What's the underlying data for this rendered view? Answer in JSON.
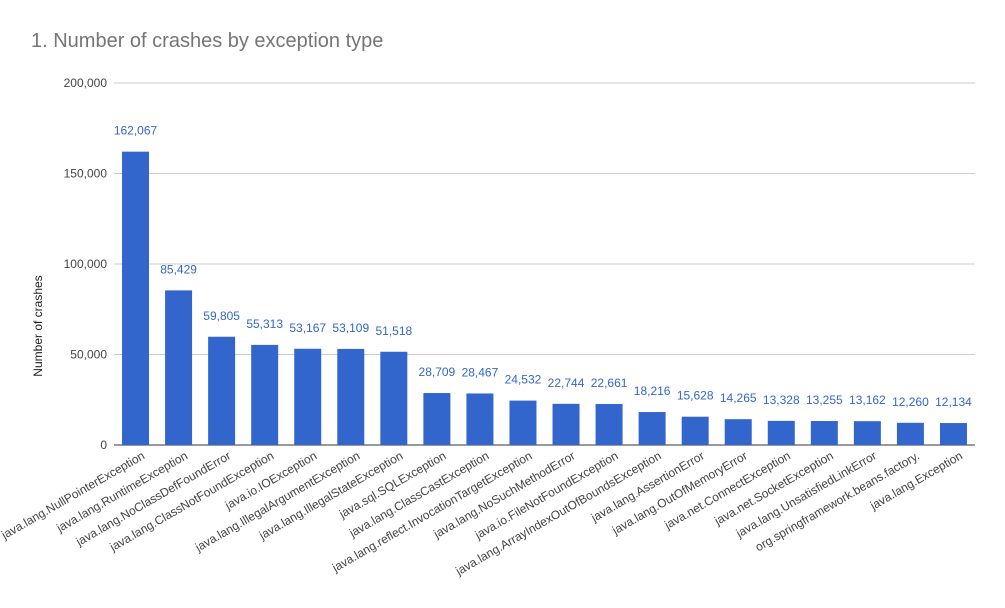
{
  "chart_data": {
    "type": "bar",
    "title": "1. Number of crashes by exception type",
    "xlabel": "",
    "ylabel": "Number of crashes",
    "ylim": [
      0,
      200000
    ],
    "yticks": [
      "0",
      "50,000",
      "100,000",
      "150,000",
      "200,000"
    ],
    "ytick_values": [
      0,
      50000,
      100000,
      150000,
      200000
    ],
    "grid": true,
    "bar_color": "#3366cc",
    "label_color": "#3366cc",
    "categories": [
      "java.lang.NullPointerException",
      "java.lang.RuntimeException",
      "java.lang.NoClassDefFoundError",
      "java.lang.ClassNotFoundException",
      "java.io.IOException",
      "java.lang.IllegalArgumentException",
      "java.lang.IllegalStateException",
      "java.sql.SQLException",
      "java.lang.ClassCastException",
      "java.lang.reflect.InvocationTargetException",
      "java.lang.NoSuchMethodError",
      "java.io.FileNotFoundException",
      "java.lang.ArrayIndexOutOfBoundsException",
      "java.lang.AssertionError",
      "java.lang.OutOfMemoryError",
      "java.net.ConnectException",
      "java.net.SocketException",
      "java.lang.UnsatisfiedLinkError",
      "org.springframework.beans.factory.",
      "java.lang.Exception"
    ],
    "values": [
      162067,
      85429,
      59805,
      55313,
      53167,
      53109,
      51518,
      28709,
      28467,
      24532,
      22744,
      22661,
      18216,
      15628,
      14265,
      13328,
      13255,
      13162,
      12260,
      12134
    ],
    "data_labels": [
      "162,067",
      "85,429",
      "59,805",
      "55,313",
      "53,167",
      "53,109",
      "51,518",
      "28,709",
      "28,467",
      "24,532",
      "22,744",
      "22,661",
      "18,216",
      "15,628",
      "14,265",
      "13,328",
      "13,255",
      "13,162",
      "12,260",
      "12,134"
    ]
  }
}
